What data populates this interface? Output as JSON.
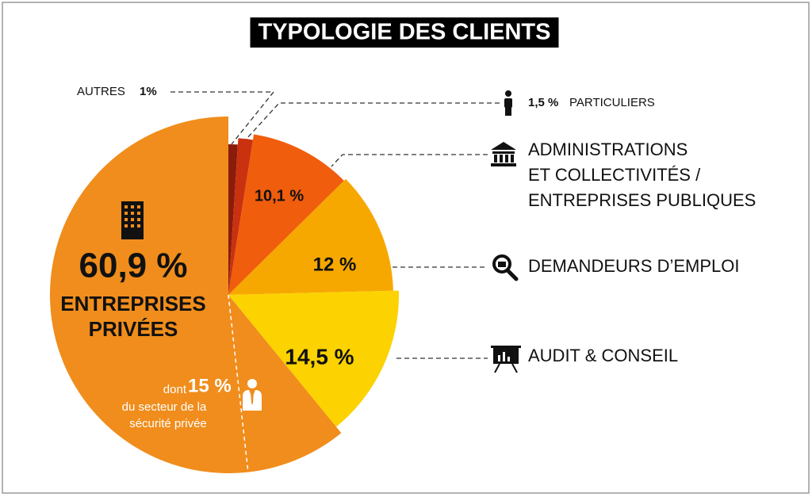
{
  "chart_data": {
    "type": "pie",
    "title": "TYPOLOGIE DES CLIENTS",
    "categories": [
      [
        "AUTRES"
      ],
      [
        "PARTICULIERS"
      ],
      [
        "ADMINISTRATIONS",
        "ET COLLECTIVITÉS /",
        "ENTREPRISES PUBLIQUES"
      ],
      [
        "DEMANDEURS D’EMPLOI"
      ],
      [
        "AUDIT & CONSEIL"
      ],
      [
        "ENTREPRISES",
        "PRIVÉES"
      ]
    ],
    "values": [
      1,
      1.5,
      10.1,
      12,
      14.5,
      60.9
    ],
    "value_labels": [
      "1%",
      "1,5 %",
      "10,1 %",
      "12 %",
      "14,5 %",
      "60,9 %"
    ],
    "colors": [
      "#8a1c0c",
      "#c9310f",
      "#f05d0c",
      "#f7a800",
      "#fcd200",
      "#f08d1c"
    ],
    "note": {
      "prefix": "dont",
      "value": 15,
      "value_label": "15 %",
      "lines": [
        "du secteur de la",
        "sécurité privée"
      ]
    }
  }
}
